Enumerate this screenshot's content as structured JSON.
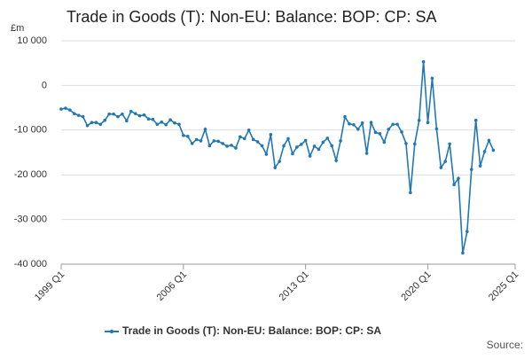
{
  "chart_data": {
    "type": "line",
    "title": "Trade in Goods (T): Non-EU: Balance: BOP: CP: SA",
    "y_unit": "£m",
    "source": "Source:",
    "categories": [
      "1999 Q1",
      null,
      null,
      null,
      null,
      null,
      null,
      null,
      null,
      null,
      null,
      null,
      null,
      null,
      null,
      null,
      null,
      null,
      null,
      null,
      null,
      null,
      null,
      null,
      null,
      null,
      null,
      null,
      "2006 Q1",
      null,
      null,
      null,
      null,
      null,
      null,
      null,
      null,
      null,
      null,
      null,
      null,
      null,
      null,
      null,
      null,
      null,
      null,
      null,
      null,
      null,
      null,
      null,
      null,
      null,
      null,
      null,
      "2013 Q1",
      null,
      null,
      null,
      null,
      null,
      null,
      null,
      null,
      null,
      null,
      null,
      null,
      null,
      null,
      null,
      null,
      null,
      null,
      null,
      null,
      null,
      null,
      null,
      null,
      null,
      null,
      null,
      "2020 Q1",
      null,
      null,
      null,
      null,
      null,
      null,
      null,
      null,
      null,
      null,
      null,
      null,
      null,
      null,
      null,
      null,
      null,
      null,
      null,
      "2025 Q1"
    ],
    "series": [
      {
        "name": "Trade in Goods (T): Non-EU: Balance: BOP: CP: SA",
        "color": "#2178b5",
        "values": [
          -5300,
          -5100,
          -5500,
          -6300,
          -6700,
          -7000,
          -9000,
          -8300,
          -8300,
          -8700,
          -7800,
          -6400,
          -6400,
          -7000,
          -6400,
          -7900,
          -5800,
          -6300,
          -6800,
          -6600,
          -7500,
          -7600,
          -8700,
          -8200,
          -8800,
          -7700,
          -8400,
          -8700,
          -11200,
          -11400,
          -13000,
          -12100,
          -12400,
          -9800,
          -13500,
          -12400,
          -12500,
          -13000,
          -13600,
          -13400,
          -14000,
          -11500,
          -11900,
          -10000,
          -12100,
          -12600,
          -13500,
          -15400,
          -11000,
          -18400,
          -17000,
          -13500,
          -11900,
          -15300,
          -13800,
          -13200,
          -12300,
          -15800,
          -13600,
          -14300,
          -12700,
          -11800,
          -13500,
          -16800,
          -12400,
          -7000,
          -8600,
          -8800,
          -9800,
          -8400,
          -15200,
          -8300,
          -10500,
          -10800,
          -12700,
          -9800,
          -8700,
          -8700,
          -10400,
          -13000,
          -24000,
          -13100,
          -7800,
          5300,
          -8300,
          1600,
          -9700,
          -18400,
          -17000,
          -13100,
          -22200,
          -20800,
          -37500,
          -32700,
          -18800,
          -7800,
          -18000,
          -14800,
          -12300,
          -14500,
          null,
          null,
          null,
          null,
          null
        ]
      }
    ],
    "ylim": [
      -40000,
      10000
    ],
    "yticks": [
      {
        "value": -40000,
        "label": "-40 000"
      },
      {
        "value": -30000,
        "label": "-30 000"
      },
      {
        "value": -20000,
        "label": "-20 000"
      },
      {
        "value": -10000,
        "label": "-10 000"
      },
      0,
      {
        "value": 10000,
        "label": "10 000"
      }
    ],
    "grid": true,
    "legend": "bottom"
  }
}
